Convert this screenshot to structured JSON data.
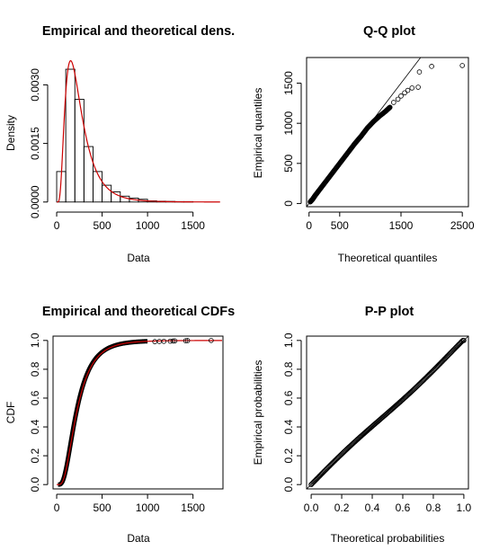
{
  "chart_data": [
    {
      "id": "density",
      "type": "histogram",
      "title": "Empirical and theoretical dens.",
      "xlabel": "Data",
      "ylabel": "Density",
      "xlim": [
        -40,
        1830
      ],
      "ylim": [
        -0.00012,
        0.0037
      ],
      "xticks": [
        0,
        500,
        1000,
        1500
      ],
      "yticks": [
        0.0,
        0.0015,
        0.003
      ],
      "ytick_labels": [
        "0.0000",
        "0.0015",
        "0.0030"
      ],
      "bins": [
        {
          "x0": 0,
          "x1": 100,
          "density": 0.00078
        },
        {
          "x0": 100,
          "x1": 200,
          "density": 0.0034
        },
        {
          "x0": 200,
          "x1": 300,
          "density": 0.00263
        },
        {
          "x0": 300,
          "x1": 400,
          "density": 0.00142
        },
        {
          "x0": 400,
          "x1": 500,
          "density": 0.00078
        },
        {
          "x0": 500,
          "x1": 600,
          "density": 0.00043
        },
        {
          "x0": 600,
          "x1": 700,
          "density": 0.00026
        },
        {
          "x0": 700,
          "x1": 800,
          "density": 0.00015
        },
        {
          "x0": 800,
          "x1": 900,
          "density": 0.0001
        },
        {
          "x0": 900,
          "x1": 1000,
          "density": 7e-05
        },
        {
          "x0": 1000,
          "x1": 1100,
          "density": 3e-05
        },
        {
          "x0": 1100,
          "x1": 1200,
          "density": 2e-05
        },
        {
          "x0": 1200,
          "x1": 1300,
          "density": 1.5e-05
        },
        {
          "x0": 1300,
          "x1": 1400,
          "density": 1e-05
        },
        {
          "x0": 1400,
          "x1": 1500,
          "density": 1e-05
        }
      ],
      "curve_color": "#cc0000"
    },
    {
      "id": "qq",
      "type": "scatter",
      "title": "Q-Q plot",
      "xlabel": "Theoretical quantiles",
      "ylabel": "Empirical quantiles",
      "xlim": [
        -40,
        2600
      ],
      "ylim": [
        -40,
        1820
      ],
      "xticks": [
        0,
        500,
        1500,
        2500
      ],
      "yticks": [
        0,
        500,
        1000,
        1500
      ],
      "points": [
        [
          20,
          20
        ],
        [
          60,
          55
        ],
        [
          100,
          100
        ],
        [
          160,
          160
        ],
        [
          250,
          250
        ],
        [
          350,
          350
        ],
        [
          450,
          450
        ],
        [
          550,
          550
        ],
        [
          650,
          650
        ],
        [
          750,
          750
        ],
        [
          850,
          840
        ],
        [
          950,
          940
        ],
        [
          1050,
          1020
        ],
        [
          1150,
          1090
        ],
        [
          1250,
          1150
        ],
        [
          1320,
          1200
        ],
        [
          1380,
          1260
        ],
        [
          1450,
          1300
        ],
        [
          1500,
          1340
        ],
        [
          1560,
          1380
        ],
        [
          1610,
          1410
        ],
        [
          1680,
          1440
        ],
        [
          1780,
          1450
        ],
        [
          1800,
          1640
        ],
        [
          2000,
          1710
        ],
        [
          2500,
          1720
        ]
      ]
    },
    {
      "id": "cdf",
      "type": "line",
      "title": "Empirical and theoretical CDFs",
      "xlabel": "Data",
      "ylabel": "CDF",
      "xlim": [
        -40,
        1830
      ],
      "ylim": [
        -0.03,
        1.03
      ],
      "xticks": [
        0,
        500,
        1000,
        1500
      ],
      "yticks": [
        0.0,
        0.2,
        0.4,
        0.6,
        0.8,
        1.0
      ],
      "ytick_labels": [
        "0.0",
        "0.2",
        "0.4",
        "0.6",
        "0.8",
        "1.0"
      ],
      "tail_points": [
        [
          1080,
          0.992
        ],
        [
          1130,
          0.993
        ],
        [
          1180,
          0.994
        ],
        [
          1250,
          0.995
        ],
        [
          1280,
          0.996
        ],
        [
          1300,
          0.997
        ],
        [
          1420,
          0.998
        ],
        [
          1440,
          0.999
        ],
        [
          1700,
          1.0
        ]
      ],
      "curve_color": "#cc0000"
    },
    {
      "id": "pp",
      "type": "scatter",
      "title": "P-P plot",
      "xlabel": "Theoretical probabilities",
      "ylabel": "Empirical probabilities",
      "xlim": [
        -0.03,
        1.03
      ],
      "ylim": [
        -0.03,
        1.03
      ],
      "xticks": [
        0.0,
        0.2,
        0.4,
        0.6,
        0.8,
        1.0
      ],
      "yticks": [
        0.0,
        0.2,
        0.4,
        0.6,
        0.8,
        1.0
      ],
      "xtick_labels": [
        "0.0",
        "0.2",
        "0.4",
        "0.6",
        "0.8",
        "1.0"
      ],
      "ytick_labels": [
        "0.0",
        "0.2",
        "0.4",
        "0.6",
        "0.8",
        "1.0"
      ]
    }
  ]
}
